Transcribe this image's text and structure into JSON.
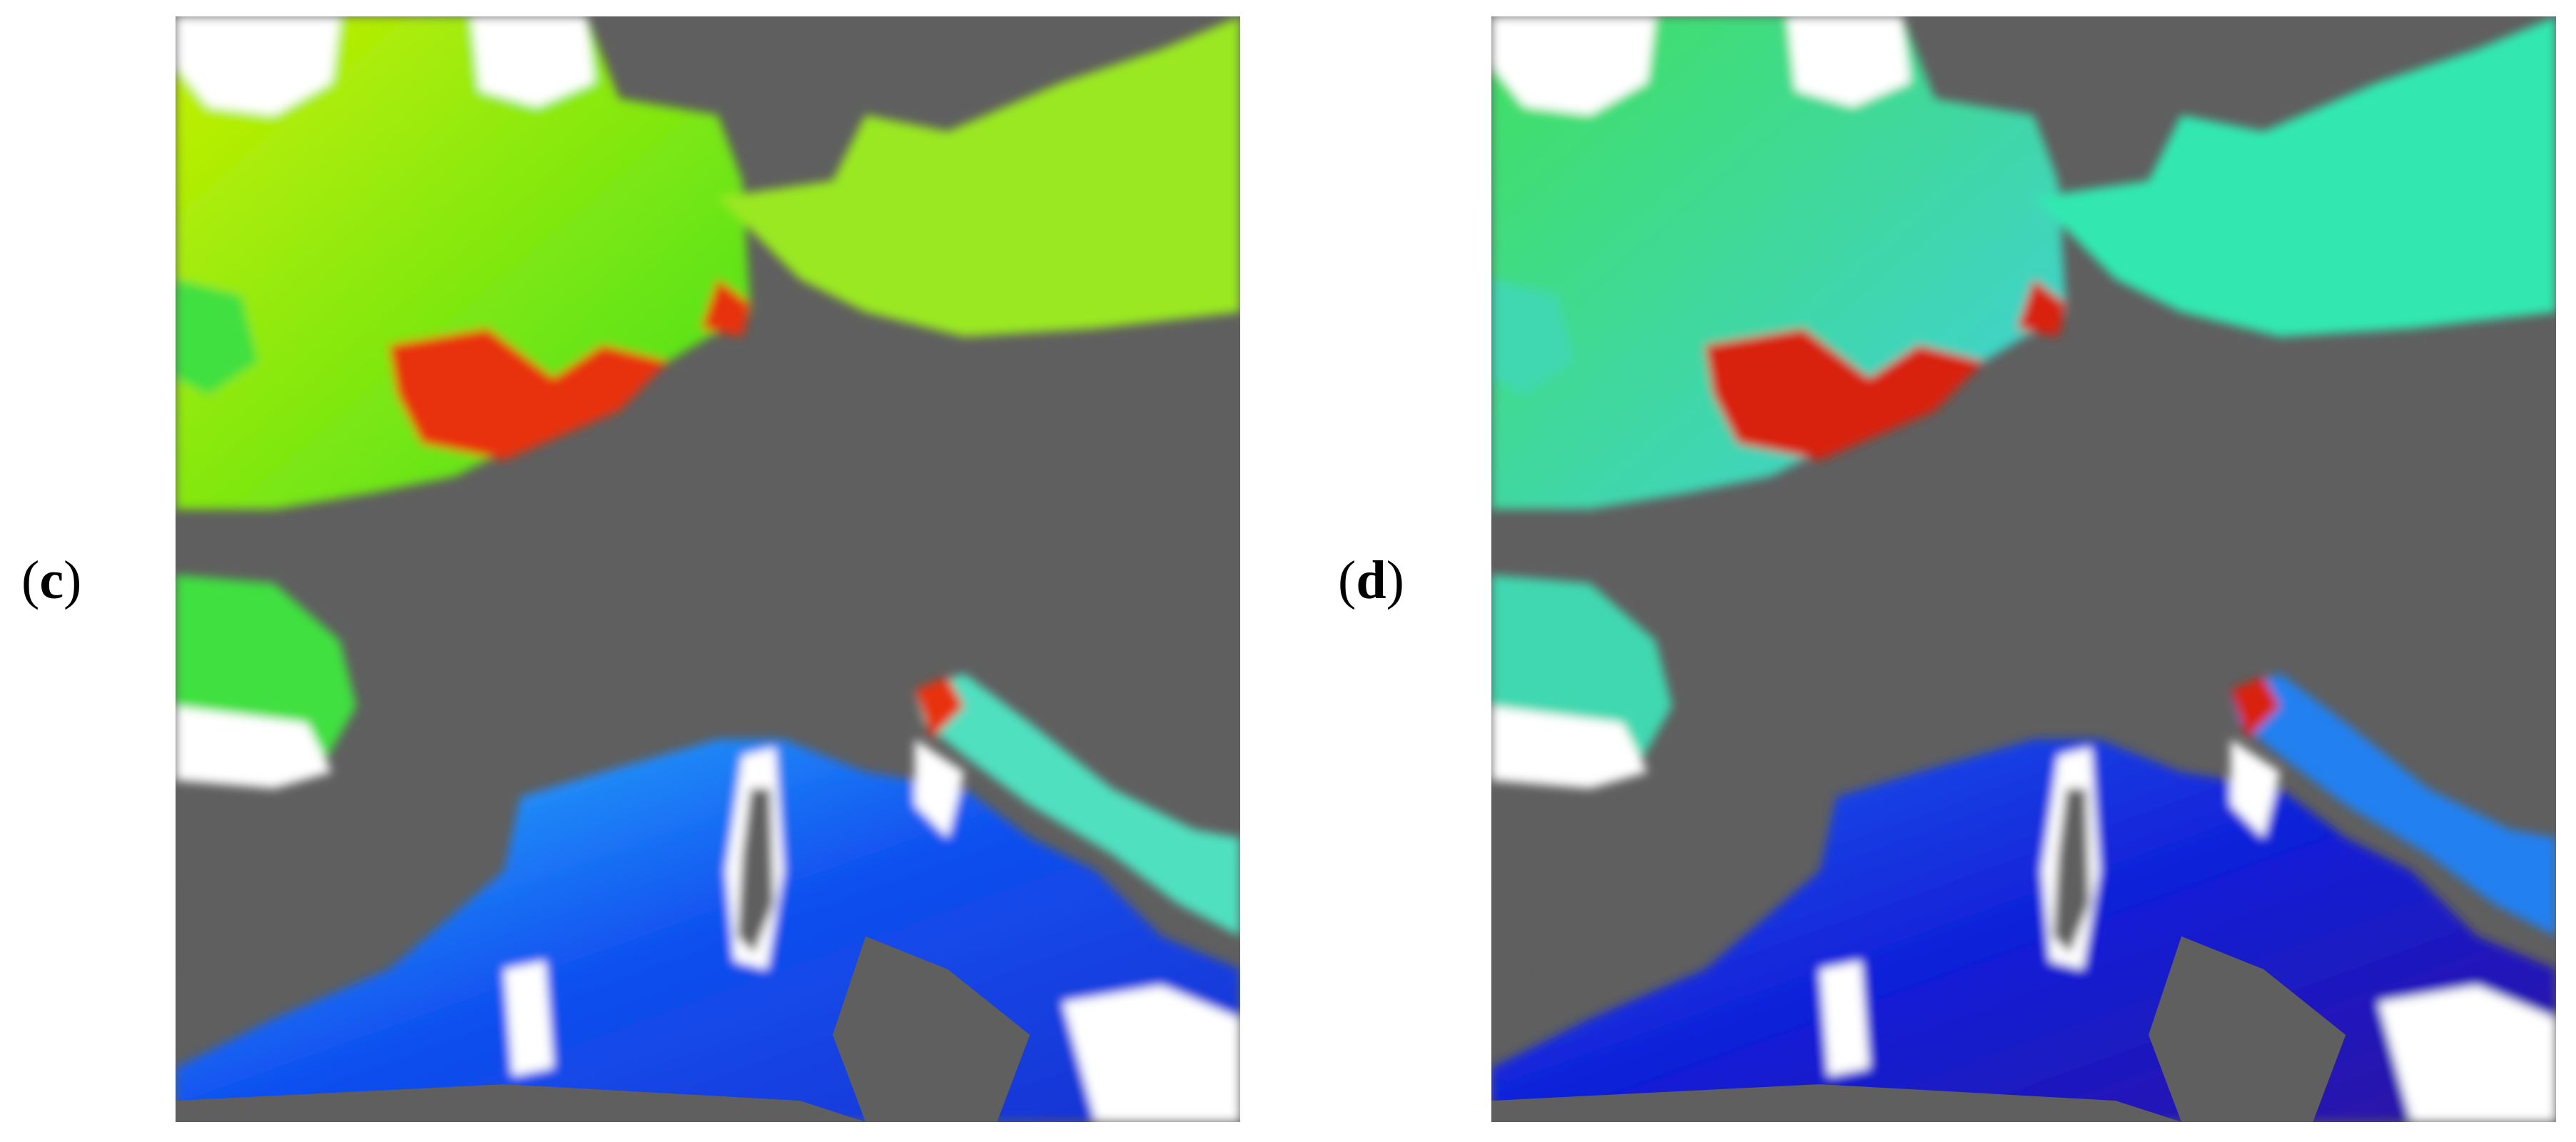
{
  "panels": [
    {
      "label": "(c)"
    },
    {
      "label": "(d)"
    }
  ]
}
